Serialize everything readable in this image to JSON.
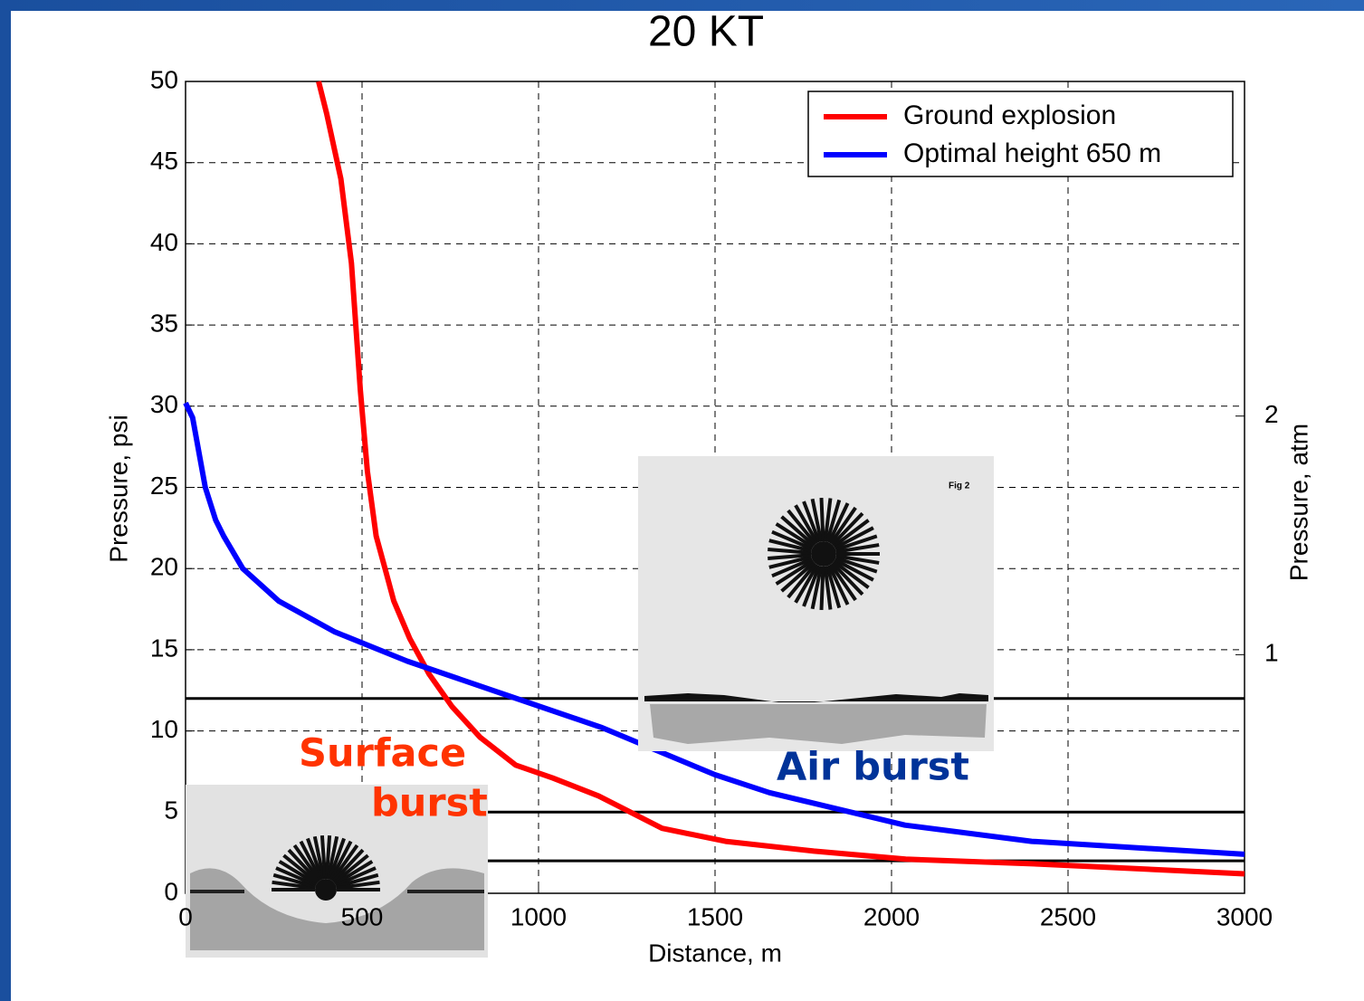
{
  "chart_data": {
    "type": "line",
    "title": "20 KT",
    "x_label": "Distance, m",
    "y_label": "Pressure, psi",
    "y2_label": "Pressure, atm",
    "xlim": [
      0,
      3000
    ],
    "xticks": [
      0,
      500,
      1000,
      1500,
      2000,
      2500,
      3000
    ],
    "ylim": [
      0,
      50
    ],
    "yticks": [
      0,
      5,
      10,
      15,
      20,
      25,
      30,
      35,
      40,
      45,
      50
    ],
    "y2lim": [
      0,
      3.4023
    ],
    "y2ticks": [
      1,
      2
    ],
    "grid": true,
    "legend": "upper right",
    "series": [
      {
        "name": "Ground explosion",
        "color": "#ff0000",
        "x": [
          377,
          400,
          440,
          470,
          495,
          515,
          540,
          565,
          590,
          635,
          690,
          755,
          835,
          935,
          1040,
          1170,
          1350,
          1530,
          1780,
          2040,
          2420,
          3000
        ],
        "values": [
          50,
          48,
          44,
          38.8,
          31,
          26,
          22,
          20,
          18,
          15.7,
          13.5,
          11.5,
          9.6,
          7.9,
          7.1,
          6,
          4,
          3.2,
          2.6,
          2.1,
          1.8,
          1.2
        ]
      },
      {
        "name": "Optimal height 650 m",
        "color": "#0000ff",
        "x": [
          0,
          20,
          56,
          85,
          108,
          162,
          218,
          264,
          423,
          628,
          910,
          1180,
          1500,
          1654,
          2038,
          2397,
          3000
        ],
        "values": [
          30.2,
          29.3,
          25,
          23,
          22,
          20,
          18.9,
          18,
          16.1,
          14.3,
          12.2,
          10.2,
          7.3,
          6.2,
          4.2,
          3.2,
          2.4
        ]
      }
    ],
    "reference_lines": {
      "color": "#000000",
      "values": [
        12,
        5,
        2
      ]
    },
    "annotations": [
      {
        "lines": [
          "Surface",
          "burst"
        ],
        "color": "#ff3300"
      },
      {
        "lines": [
          "Air burst"
        ],
        "color": "#003399"
      }
    ],
    "inset_label": "Fig 2"
  }
}
